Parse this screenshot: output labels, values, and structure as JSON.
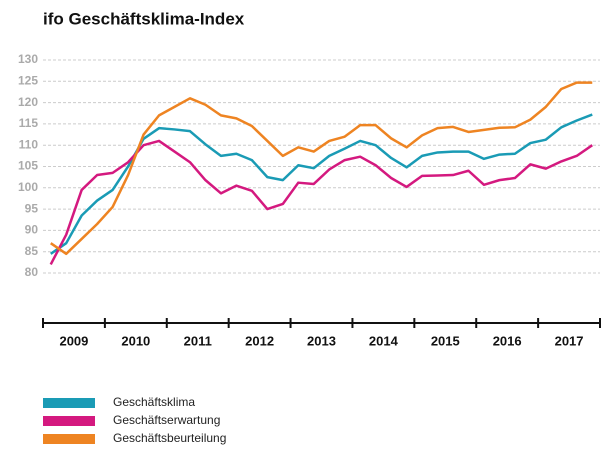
{
  "chart_data": {
    "type": "line",
    "title": "ifo Geschäftsklima-Index",
    "x": [
      2009.125,
      2009.375,
      2009.625,
      2009.875,
      2010.125,
      2010.375,
      2010.625,
      2010.875,
      2011.125,
      2011.375,
      2011.625,
      2011.875,
      2012.125,
      2012.375,
      2012.625,
      2012.875,
      2013.125,
      2013.375,
      2013.625,
      2013.875,
      2014.125,
      2014.375,
      2014.625,
      2014.875,
      2015.125,
      2015.375,
      2015.625,
      2015.875,
      2016.125,
      2016.375,
      2016.625,
      2016.875,
      2017.125,
      2017.375,
      2017.625,
      2017.875
    ],
    "xlim": [
      2009,
      2018
    ],
    "xticks": [
      2009,
      2010,
      2011,
      2012,
      2013,
      2014,
      2015,
      2016,
      2017,
      2018
    ],
    "year_labels": [
      "2009",
      "2010",
      "2011",
      "2012",
      "2013",
      "2014",
      "2015",
      "2016",
      "2017"
    ],
    "ylim": [
      80,
      130
    ],
    "yticks": [
      80,
      85,
      90,
      95,
      100,
      105,
      110,
      115,
      120,
      125,
      130
    ],
    "grid": true,
    "series": [
      {
        "name": "Geschäftsklima",
        "color": "#1a9bb5",
        "values": [
          84.5,
          87,
          93.5,
          97,
          99.5,
          105,
          111.5,
          114,
          113.7,
          113.3,
          110.2,
          107.5,
          108,
          106.5,
          102.5,
          101.8,
          105.3,
          104.6,
          107.5,
          109.2,
          111,
          110,
          107,
          104.8,
          107.5,
          108.3,
          108.5,
          108.5,
          106.8,
          107.8,
          108,
          110.5,
          111.3,
          114.2,
          115.8,
          117.2
        ]
      },
      {
        "name": "Geschäftserwartung",
        "color": "#d4197f",
        "values": [
          82,
          89,
          99.5,
          103,
          103.5,
          106,
          110,
          111,
          108.5,
          106,
          101.8,
          98.7,
          100.5,
          99.3,
          95,
          96.2,
          101.2,
          100.9,
          104.3,
          106.5,
          107.3,
          105.3,
          102.3,
          100.2,
          102.8,
          102.9,
          103,
          104,
          100.7,
          101.8,
          102.3,
          105.5,
          104.5,
          106.2,
          107.5,
          110
        ]
      },
      {
        "name": "Geschäftsbeurteilung",
        "color": "#ee8422",
        "values": [
          87,
          84.5,
          88,
          91.5,
          95.5,
          103,
          112.5,
          117,
          119,
          121,
          119.5,
          117,
          116.3,
          114.5,
          111,
          107.5,
          109.5,
          108.5,
          111,
          112,
          114.7,
          114.7,
          111.6,
          109.5,
          112.3,
          114,
          114.3,
          113.1,
          113.6,
          114.1,
          114.2,
          116,
          119,
          123.2,
          124.7,
          124.7
        ]
      }
    ]
  }
}
